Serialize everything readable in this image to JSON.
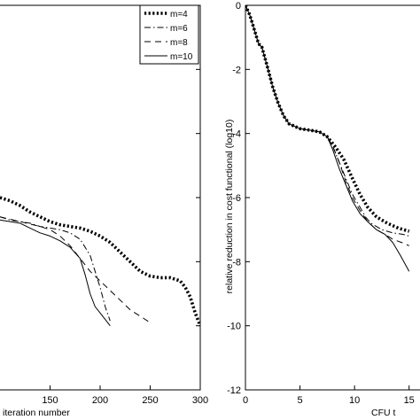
{
  "chart_data": [
    {
      "type": "line",
      "panel": "left",
      "xlabel": "iteration number",
      "ylabel": "",
      "xlim": [
        100,
        300
      ],
      "ylim": [
        -12,
        0
      ],
      "x_ticks": [
        150,
        200,
        250,
        300
      ],
      "grid": false,
      "legend_position": "top-right",
      "series": [
        {
          "name": "m=4",
          "style": "dotted-heavy",
          "x": [
            100,
            110,
            120,
            130,
            140,
            150,
            160,
            170,
            180,
            190,
            200,
            210,
            220,
            230,
            240,
            250,
            260,
            270,
            280,
            285,
            290,
            295,
            300
          ],
          "y": [
            -6.0,
            -6.1,
            -6.25,
            -6.45,
            -6.6,
            -6.75,
            -6.85,
            -6.9,
            -6.95,
            -7.05,
            -7.2,
            -7.4,
            -7.7,
            -8.0,
            -8.3,
            -8.45,
            -8.5,
            -8.5,
            -8.6,
            -8.8,
            -9.1,
            -9.6,
            -10.0
          ]
        },
        {
          "name": "m=6",
          "style": "dash-dot",
          "x": [
            100,
            110,
            120,
            130,
            140,
            150,
            160,
            170,
            180,
            190,
            195,
            200,
            205,
            210
          ],
          "y": [
            -6.6,
            -6.7,
            -6.75,
            -6.8,
            -6.9,
            -6.95,
            -7.0,
            -7.1,
            -7.3,
            -7.8,
            -8.3,
            -8.8,
            -9.4,
            -9.85
          ]
        },
        {
          "name": "m=8",
          "style": "dashed",
          "x": [
            100,
            120,
            140,
            150,
            160,
            170,
            180,
            190,
            200,
            210,
            220,
            230,
            240,
            250
          ],
          "y": [
            -6.6,
            -6.75,
            -6.9,
            -7.0,
            -7.2,
            -7.5,
            -7.9,
            -8.3,
            -8.6,
            -8.9,
            -9.2,
            -9.5,
            -9.7,
            -9.9
          ]
        },
        {
          "name": "m=10",
          "style": "solid",
          "x": [
            100,
            110,
            120,
            130,
            140,
            150,
            160,
            170,
            180,
            185,
            190,
            195,
            200,
            205,
            210
          ],
          "y": [
            -6.7,
            -6.75,
            -6.8,
            -6.95,
            -7.1,
            -7.2,
            -7.35,
            -7.55,
            -7.9,
            -8.4,
            -9.0,
            -9.4,
            -9.6,
            -9.8,
            -10.0
          ]
        }
      ]
    },
    {
      "type": "line",
      "panel": "right",
      "xlabel": "CFU t",
      "ylabel": "relative reduction in cost functional (log10)",
      "xlim": [
        0,
        15
      ],
      "ylim": [
        -12,
        0
      ],
      "x_ticks": [
        0,
        5,
        10,
        15
      ],
      "y_ticks": [
        0,
        -2,
        -4,
        -6,
        -8,
        -10,
        -12
      ],
      "grid": false,
      "series": [
        {
          "name": "m=4",
          "style": "dotted-heavy",
          "x": [
            0,
            0.4,
            0.8,
            1.2,
            1.5,
            2,
            2.5,
            3,
            3.5,
            4,
            5,
            6,
            6.8,
            7.5,
            8.2,
            9,
            9.8,
            10.5,
            11.2,
            12,
            13,
            14,
            15
          ],
          "y": [
            0,
            -0.3,
            -0.75,
            -1.2,
            -1.3,
            -1.9,
            -2.55,
            -3.05,
            -3.45,
            -3.7,
            -3.85,
            -3.9,
            -3.95,
            -4.1,
            -4.4,
            -4.8,
            -5.4,
            -5.9,
            -6.3,
            -6.6,
            -6.8,
            -6.95,
            -7.05
          ]
        },
        {
          "name": "m=6",
          "style": "dash-dot",
          "x": [
            0,
            0.4,
            0.8,
            1.2,
            1.5,
            2,
            2.5,
            3,
            3.5,
            4,
            5,
            6,
            6.8,
            7.5,
            8,
            8.6,
            9.2,
            9.8,
            10.5,
            11,
            11.5,
            12.5,
            13.5,
            14.5,
            15
          ],
          "y": [
            0,
            -0.3,
            -0.75,
            -1.2,
            -1.3,
            -1.9,
            -2.55,
            -3.05,
            -3.45,
            -3.7,
            -3.85,
            -3.9,
            -3.95,
            -4.1,
            -4.4,
            -4.9,
            -5.4,
            -5.9,
            -6.3,
            -6.6,
            -6.8,
            -7.0,
            -7.1,
            -7.15,
            -7.2
          ]
        },
        {
          "name": "m=8",
          "style": "dashed",
          "x": [
            0,
            0.4,
            0.8,
            1.2,
            1.5,
            2,
            2.5,
            3,
            3.5,
            4,
            5,
            6,
            6.8,
            7.5,
            8,
            8.6,
            9.2,
            9.8,
            10.5,
            11.2,
            12,
            12.8,
            13.5,
            14.3,
            15
          ],
          "y": [
            0,
            -0.3,
            -0.75,
            -1.2,
            -1.3,
            -1.9,
            -2.55,
            -3.05,
            -3.45,
            -3.7,
            -3.85,
            -3.9,
            -3.95,
            -4.1,
            -4.4,
            -4.9,
            -5.5,
            -6.0,
            -6.4,
            -6.75,
            -7.0,
            -7.15,
            -7.3,
            -7.4,
            -7.5
          ]
        },
        {
          "name": "m=10",
          "style": "solid",
          "x": [
            0,
            0.4,
            0.8,
            1.2,
            1.5,
            2,
            2.5,
            3,
            3.5,
            4,
            5,
            6,
            6.8,
            7.5,
            8,
            8.6,
            9.2,
            9.8,
            10.5,
            11.2,
            12,
            12.8,
            13.5,
            14.2,
            15
          ],
          "y": [
            0,
            -0.3,
            -0.75,
            -1.2,
            -1.3,
            -1.9,
            -2.55,
            -3.05,
            -3.45,
            -3.7,
            -3.85,
            -3.9,
            -3.95,
            -4.1,
            -4.5,
            -5.1,
            -5.6,
            -6.1,
            -6.5,
            -6.75,
            -7.0,
            -7.15,
            -7.4,
            -7.8,
            -8.3
          ]
        }
      ]
    }
  ],
  "legend": {
    "entries": [
      "m=4",
      "m=6",
      "m=8",
      "m=10"
    ]
  }
}
